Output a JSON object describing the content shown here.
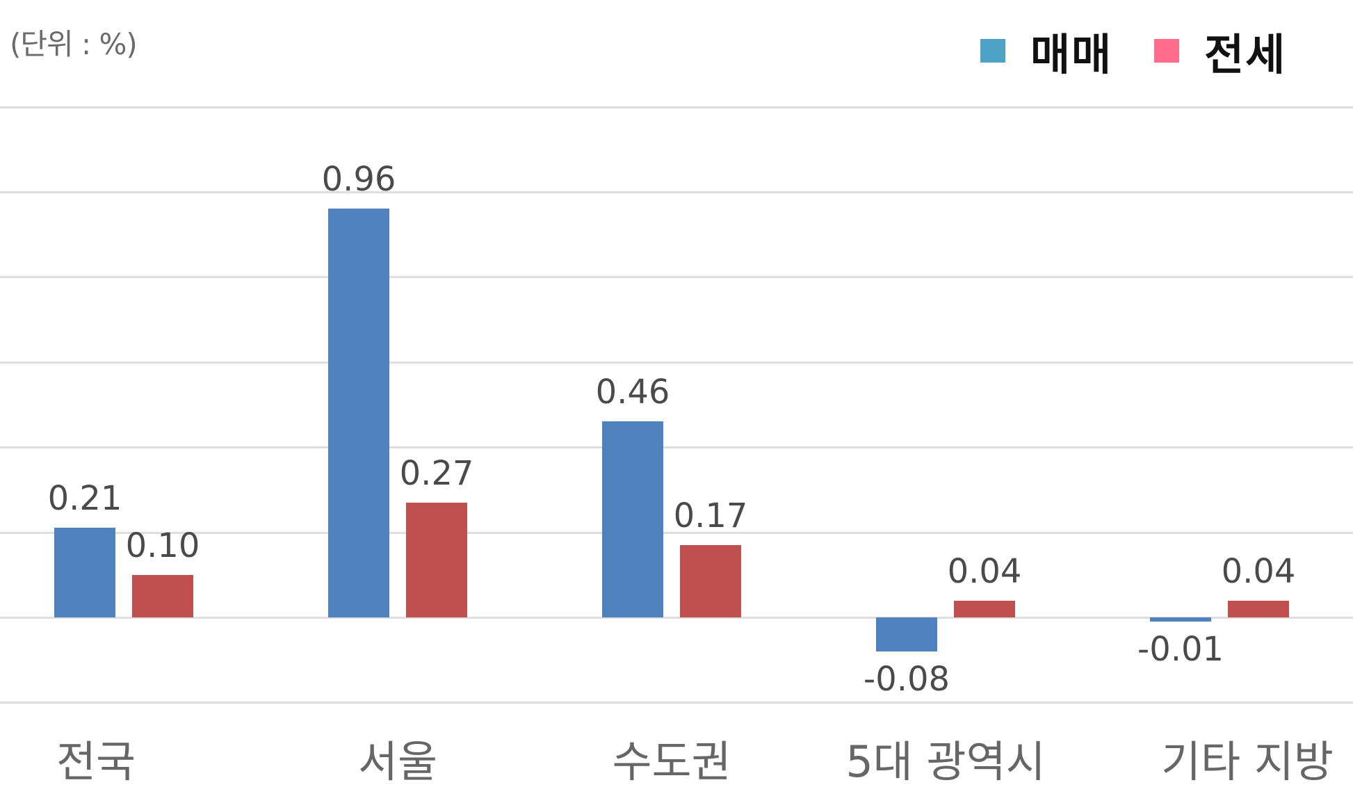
{
  "unit_label": "(단위 : %)",
  "legend": [
    {
      "label": "매매",
      "color": "#4da2c6"
    },
    {
      "label": "전세",
      "color": "#ff6b8a"
    }
  ],
  "colors": {
    "sale_bar": "#4f81bd",
    "jeonse_bar": "#c0504d",
    "grid": "#dedede"
  },
  "chart_data": {
    "type": "bar",
    "title": "",
    "xlabel": "",
    "ylabel": "(단위 : %)",
    "categories": [
      "전국",
      "서울",
      "수도권",
      "5대 광역시",
      "기타 지방"
    ],
    "series": [
      {
        "name": "매매",
        "values": [
          0.21,
          0.96,
          0.46,
          -0.08,
          -0.01
        ]
      },
      {
        "name": "전세",
        "values": [
          0.1,
          0.27,
          0.17,
          0.04,
          0.04
        ]
      }
    ],
    "value_labels": {
      "매매": [
        "0.21",
        "0.96",
        "0.46",
        "-0.08",
        "-0.01"
      ],
      "전세": [
        "0.10",
        "0.27",
        "0.17",
        "0.04",
        "0.04"
      ]
    },
    "ylim": [
      -0.2,
      1.2
    ],
    "grid": true,
    "y_axis_ticks_visible": false,
    "legend_position": "top-right"
  }
}
